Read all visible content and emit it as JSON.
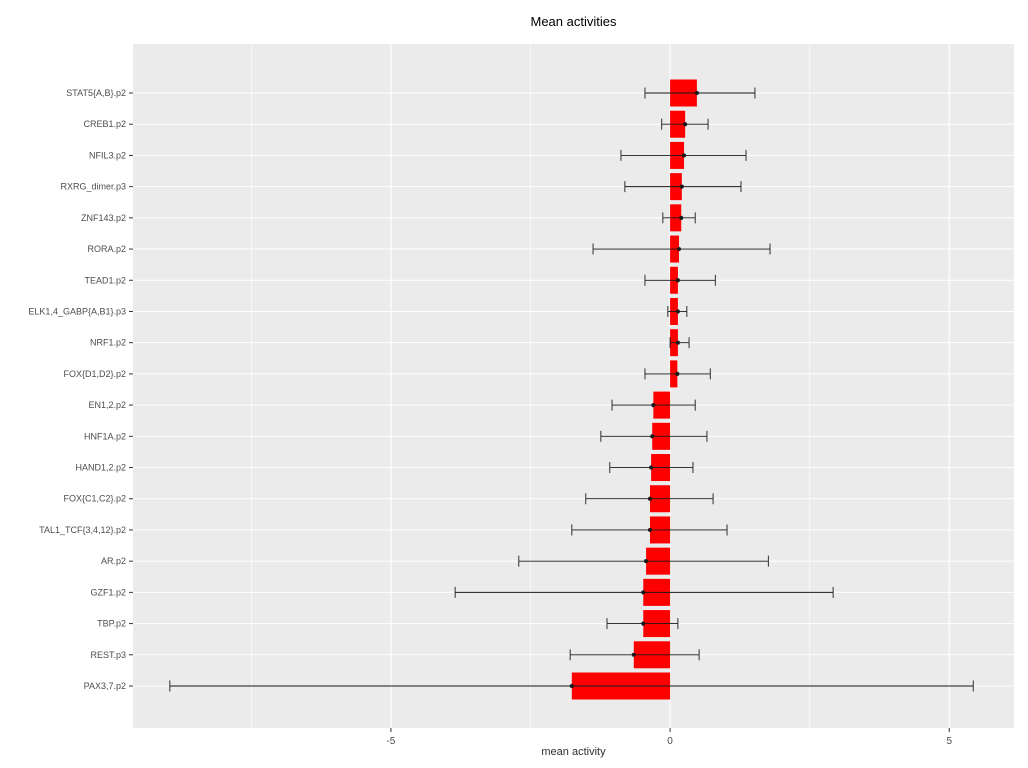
{
  "chart_data": {
    "type": "bar",
    "orientation": "horizontal",
    "title": "Mean activities",
    "xlabel": "mean activity",
    "ylabel": "",
    "xlim": [
      -9.62,
      6.16
    ],
    "x_ticks": [
      -5,
      0,
      5
    ],
    "x_tick_labels": [
      "-5",
      "0",
      "5"
    ],
    "x_minor_ticks": [
      -7.5,
      -2.5,
      2.5
    ],
    "grid": true,
    "legend": "none",
    "panel_bg": "#ebebeb",
    "grid_color": "#ffffff",
    "bar_color": "#ff0000",
    "errorbar_color": "#1a1a1a",
    "point_color": "#1a1a1a",
    "categories": [
      "STAT5{A,B}.p2",
      "CREB1.p2",
      "NFIL3.p2",
      "RXRG_dimer.p3",
      "ZNF143.p2",
      "RORA.p2",
      "TEAD1.p2",
      "ELK1,4_GABP{A,B1}.p3",
      "NRF1.p2",
      "FOX{D1,D2}.p2",
      "EN1,2.p2",
      "HNF1A.p2",
      "HAND1,2.p2",
      "FOX{C1,C2}.p2",
      "TAL1_TCF{3,4,12}.p2",
      "AR.p2",
      "GZF1.p2",
      "TBP.p2",
      "REST.p3",
      "PAX3,7.p2"
    ],
    "values": [
      0.48,
      0.27,
      0.25,
      0.21,
      0.2,
      0.16,
      0.14,
      0.14,
      0.14,
      0.13,
      -0.3,
      -0.32,
      -0.34,
      -0.36,
      -0.36,
      -0.43,
      -0.48,
      -0.48,
      -0.65,
      -1.76
    ],
    "error_low": [
      -0.45,
      -0.15,
      -0.88,
      -0.81,
      -0.13,
      -1.38,
      -0.45,
      -0.04,
      0.0,
      -0.45,
      -1.04,
      -1.24,
      -1.08,
      -1.51,
      -1.76,
      -2.71,
      -3.85,
      -1.13,
      -1.79,
      -8.96
    ],
    "error_high": [
      1.52,
      0.68,
      1.36,
      1.27,
      0.45,
      1.79,
      0.81,
      0.3,
      0.34,
      0.72,
      0.45,
      0.66,
      0.41,
      0.77,
      1.02,
      1.76,
      2.92,
      0.14,
      0.52,
      5.43
    ]
  }
}
